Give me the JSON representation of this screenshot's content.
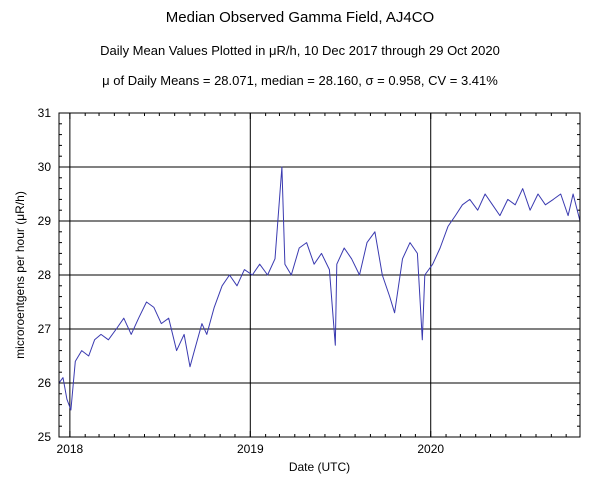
{
  "chart_data": {
    "type": "line",
    "title": "Median Observed Gamma Field, AJ4CO",
    "subtitle": "Daily Mean Values Plotted in μR/h, 10 Dec 2017 through 29 Oct 2020",
    "stats_line": "μ of Daily Means = 28.071,   median = 28.160,   σ = 0.958,   CV = 3.41%",
    "xlabel": "Date (UTC)",
    "ylabel": "microroentgens per hour (μR/h)",
    "xlim": [
      "2017-12-10",
      "2020-10-29"
    ],
    "ylim": [
      25,
      31
    ],
    "x_ticks": [
      "2018",
      "2019",
      "2020"
    ],
    "y_ticks": [
      "25",
      "26",
      "27",
      "28",
      "29",
      "30",
      "31"
    ],
    "grid": true,
    "line_color": "#3a3ab0",
    "series": [
      {
        "points": [
          [
            "2017-12-10",
            26.0
          ],
          [
            "2017-12-18",
            26.1
          ],
          [
            "2017-12-26",
            25.7
          ],
          [
            "2018-01-03",
            25.5
          ],
          [
            "2018-01-12",
            26.4
          ],
          [
            "2018-01-25",
            26.6
          ],
          [
            "2018-02-08",
            26.5
          ],
          [
            "2018-02-20",
            26.8
          ],
          [
            "2018-03-05",
            26.9
          ],
          [
            "2018-03-20",
            26.8
          ],
          [
            "2018-04-05",
            27.0
          ],
          [
            "2018-04-20",
            27.2
          ],
          [
            "2018-05-05",
            26.9
          ],
          [
            "2018-05-20",
            27.2
          ],
          [
            "2018-06-05",
            27.5
          ],
          [
            "2018-06-20",
            27.4
          ],
          [
            "2018-07-05",
            27.1
          ],
          [
            "2018-07-20",
            27.2
          ],
          [
            "2018-08-05",
            26.6
          ],
          [
            "2018-08-20",
            26.9
          ],
          [
            "2018-09-01",
            26.3
          ],
          [
            "2018-09-10",
            26.6
          ],
          [
            "2018-09-25",
            27.1
          ],
          [
            "2018-10-05",
            26.9
          ],
          [
            "2018-10-20",
            27.4
          ],
          [
            "2018-11-05",
            27.8
          ],
          [
            "2018-11-20",
            28.0
          ],
          [
            "2018-12-05",
            27.8
          ],
          [
            "2018-12-20",
            28.1
          ],
          [
            "2019-01-05",
            28.0
          ],
          [
            "2019-01-20",
            28.2
          ],
          [
            "2019-02-05",
            28.0
          ],
          [
            "2019-02-20",
            28.3
          ],
          [
            "2019-03-06",
            30.0
          ],
          [
            "2019-03-12",
            28.2
          ],
          [
            "2019-03-25",
            28.0
          ],
          [
            "2019-04-10",
            28.5
          ],
          [
            "2019-04-25",
            28.6
          ],
          [
            "2019-05-10",
            28.2
          ],
          [
            "2019-05-25",
            28.4
          ],
          [
            "2019-06-10",
            28.1
          ],
          [
            "2019-06-22",
            26.7
          ],
          [
            "2019-06-25",
            28.2
          ],
          [
            "2019-07-10",
            28.5
          ],
          [
            "2019-07-25",
            28.3
          ],
          [
            "2019-08-10",
            28.0
          ],
          [
            "2019-08-25",
            28.6
          ],
          [
            "2019-09-10",
            28.8
          ],
          [
            "2019-09-25",
            28.0
          ],
          [
            "2019-10-10",
            27.6
          ],
          [
            "2019-10-20",
            27.3
          ],
          [
            "2019-11-05",
            28.3
          ],
          [
            "2019-11-20",
            28.6
          ],
          [
            "2019-12-05",
            28.4
          ],
          [
            "2019-12-15",
            26.8
          ],
          [
            "2019-12-20",
            28.0
          ],
          [
            "2020-01-05",
            28.2
          ],
          [
            "2020-01-20",
            28.5
          ],
          [
            "2020-02-05",
            28.9
          ],
          [
            "2020-02-20",
            29.1
          ],
          [
            "2020-03-05",
            29.3
          ],
          [
            "2020-03-20",
            29.4
          ],
          [
            "2020-04-05",
            29.2
          ],
          [
            "2020-04-20",
            29.5
          ],
          [
            "2020-05-05",
            29.3
          ],
          [
            "2020-05-20",
            29.1
          ],
          [
            "2020-06-05",
            29.4
          ],
          [
            "2020-06-20",
            29.3
          ],
          [
            "2020-07-05",
            29.6
          ],
          [
            "2020-07-20",
            29.2
          ],
          [
            "2020-08-05",
            29.5
          ],
          [
            "2020-08-20",
            29.3
          ],
          [
            "2020-09-05",
            29.4
          ],
          [
            "2020-09-20",
            29.5
          ],
          [
            "2020-10-05",
            29.1
          ],
          [
            "2020-10-15",
            29.5
          ],
          [
            "2020-10-29",
            29.0
          ]
        ]
      }
    ]
  }
}
